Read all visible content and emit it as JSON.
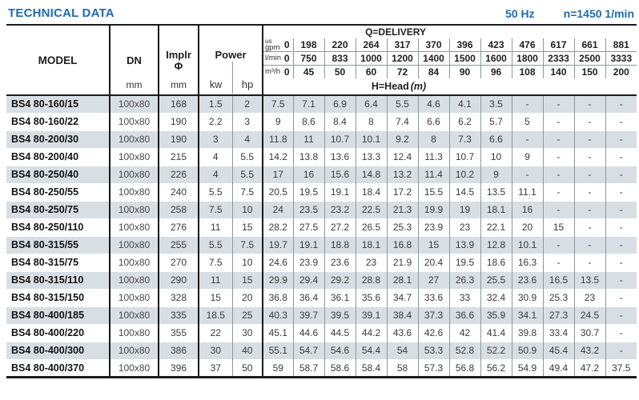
{
  "header": {
    "title": "TECHNICAL DATA",
    "frequency": "50 Hz",
    "speed": "n=1450 1/min"
  },
  "colors": {
    "accent_blue": "#1c6bb2",
    "row_shade": "#d8dfe4"
  },
  "table": {
    "columns": {
      "model": "MODEL",
      "dn": "DN",
      "dn_unit": "mm",
      "implr": "Implr",
      "implr_symbol": "Φ",
      "implr_unit": "mm",
      "power": "Power",
      "kw": "kw",
      "hp": "hp"
    },
    "delivery": {
      "title": "Q=DELIVERY",
      "head_label": "H=Head",
      "head_unit": "(m)",
      "unit_rows": [
        {
          "label_top": "us",
          "label": "gpm",
          "values": [
            "0",
            "198",
            "220",
            "264",
            "317",
            "370",
            "396",
            "423",
            "476",
            "617",
            "661",
            "881"
          ]
        },
        {
          "label_top": "",
          "label": "l/min",
          "values": [
            "0",
            "750",
            "833",
            "1000",
            "1200",
            "1400",
            "1500",
            "1600",
            "1800",
            "2333",
            "2500",
            "3333"
          ]
        },
        {
          "label_top": "",
          "label": "m³/h",
          "values": [
            "0",
            "45",
            "50",
            "60",
            "72",
            "84",
            "90",
            "96",
            "108",
            "140",
            "150",
            "200"
          ]
        }
      ]
    },
    "rows": [
      {
        "model": "BS4 80-160/15",
        "dn": "100x80",
        "implr": "168",
        "kw": "1.5",
        "hp": "2",
        "head": [
          "7.5",
          "7.1",
          "6.9",
          "6.4",
          "5.5",
          "4.6",
          "4.1",
          "3.5",
          "-",
          "-",
          "-",
          "-"
        ]
      },
      {
        "model": "BS4 80-160/22",
        "dn": "100x80",
        "implr": "190",
        "kw": "2.2",
        "hp": "3",
        "head": [
          "9",
          "8.6",
          "8.4",
          "8",
          "7.4",
          "6.6",
          "6.2",
          "5.7",
          "5",
          "-",
          "-",
          "-"
        ]
      },
      {
        "model": "BS4 80-200/30",
        "dn": "100x80",
        "implr": "190",
        "kw": "3",
        "hp": "4",
        "head": [
          "11.8",
          "11",
          "10.7",
          "10.1",
          "9.2",
          "8",
          "7.3",
          "6.6",
          "-",
          "-",
          "-",
          "-"
        ]
      },
      {
        "model": "BS4 80-200/40",
        "dn": "100x80",
        "implr": "215",
        "kw": "4",
        "hp": "5.5",
        "head": [
          "14.2",
          "13.8",
          "13.6",
          "13.3",
          "12.4",
          "11.3",
          "10.7",
          "10",
          "9",
          "-",
          "-",
          "-"
        ]
      },
      {
        "model": "BS4 80-250/40",
        "dn": "100x80",
        "implr": "226",
        "kw": "4",
        "hp": "5.5",
        "head": [
          "17",
          "16",
          "15.6",
          "14.8",
          "13.2",
          "11.4",
          "10.2",
          "9",
          "-",
          "-",
          "-",
          "-"
        ]
      },
      {
        "model": "BS4 80-250/55",
        "dn": "100x80",
        "implr": "240",
        "kw": "5.5",
        "hp": "7.5",
        "head": [
          "20.5",
          "19.5",
          "19.1",
          "18.4",
          "17.2",
          "15.5",
          "14.5",
          "13.5",
          "11.1",
          "-",
          "-",
          "-"
        ]
      },
      {
        "model": "BS4 80-250/75",
        "dn": "100x80",
        "implr": "258",
        "kw": "7.5",
        "hp": "10",
        "head": [
          "24",
          "23.5",
          "23.2",
          "22.5",
          "21.3",
          "19.9",
          "19",
          "18.1",
          "16",
          "-",
          "-",
          "-"
        ]
      },
      {
        "model": "BS4 80-250/110",
        "dn": "100x80",
        "implr": "276",
        "kw": "11",
        "hp": "15",
        "head": [
          "28.2",
          "27.5",
          "27.2",
          "26.5",
          "25.3",
          "23.9",
          "23",
          "22.1",
          "20",
          "15",
          "-",
          "-"
        ]
      },
      {
        "model": "BS4 80-315/55",
        "dn": "100x80",
        "implr": "255",
        "kw": "5.5",
        "hp": "7.5",
        "head": [
          "19.7",
          "19.1",
          "18.8",
          "18.1",
          "16.8",
          "15",
          "13.9",
          "12.8",
          "10.1",
          "-",
          "-",
          "-"
        ]
      },
      {
        "model": "BS4 80-315/75",
        "dn": "100x80",
        "implr": "270",
        "kw": "7.5",
        "hp": "10",
        "head": [
          "24.6",
          "23.9",
          "23.6",
          "23",
          "21.9",
          "20.4",
          "19.5",
          "18.6",
          "16.3",
          "-",
          "-",
          "-"
        ]
      },
      {
        "model": "BS4 80-315/110",
        "dn": "100x80",
        "implr": "290",
        "kw": "11",
        "hp": "15",
        "head": [
          "29.9",
          "29.4",
          "29.2",
          "28.8",
          "28.1",
          "27",
          "26.3",
          "25.5",
          "23.6",
          "16.5",
          "13.5",
          "-"
        ]
      },
      {
        "model": "BS4 80-315/150",
        "dn": "100x80",
        "implr": "328",
        "kw": "15",
        "hp": "20",
        "head": [
          "36.8",
          "36.4",
          "36.1",
          "35.6",
          "34.7",
          "33.6",
          "33",
          "32.4",
          "30.9",
          "25.3",
          "23",
          "-"
        ]
      },
      {
        "model": "BS4 80-400/185",
        "dn": "100x80",
        "implr": "335",
        "kw": "18.5",
        "hp": "25",
        "head": [
          "40.3",
          "39.7",
          "39.5",
          "39.1",
          "38.4",
          "37.3",
          "36.6",
          "35.9",
          "34.1",
          "27.3",
          "24.5",
          "-"
        ]
      },
      {
        "model": "BS4 80-400/220",
        "dn": "100x80",
        "implr": "355",
        "kw": "22",
        "hp": "30",
        "head": [
          "45.1",
          "44.6",
          "44.5",
          "44.2",
          "43.6",
          "42.6",
          "42",
          "41.4",
          "39.8",
          "33.4",
          "30.7",
          "-"
        ]
      },
      {
        "model": "BS4 80-400/300",
        "dn": "100x80",
        "implr": "386",
        "kw": "30",
        "hp": "40",
        "head": [
          "55.1",
          "54.7",
          "54.6",
          "54.4",
          "54",
          "53.3",
          "52.8",
          "52.2",
          "50.9",
          "45.4",
          "43.2",
          "-"
        ]
      },
      {
        "model": "BS4 80-400/370",
        "dn": "100x80",
        "implr": "396",
        "kw": "37",
        "hp": "50",
        "head": [
          "59",
          "58.7",
          "58.6",
          "58.4",
          "58",
          "57.3",
          "56.8",
          "56.2",
          "54.9",
          "49.4",
          "47.2",
          "37.5"
        ]
      }
    ]
  }
}
